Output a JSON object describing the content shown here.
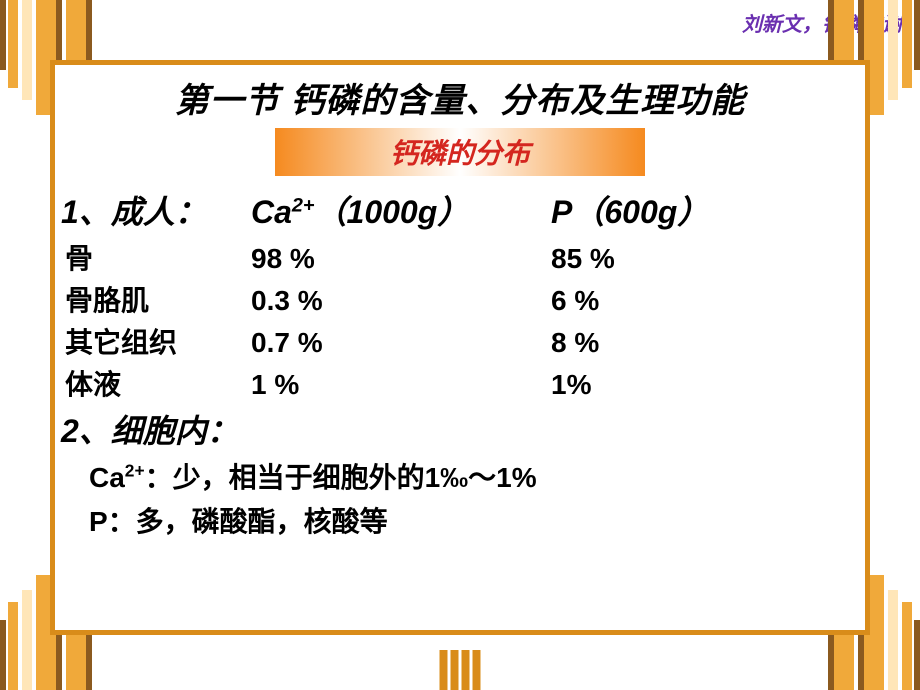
{
  "colors": {
    "header_text": "#6a2fb0",
    "frame_border": "#d98c1a",
    "subtitle_text": "#d4261f",
    "subtitle_bg_start": "#f58a1f",
    "subtitle_bg_mid": "#ffffff",
    "subtitle_bg_end": "#f58a1f",
    "stripe_gold": "#f0a93a",
    "stripe_brown": "#8b5a1f",
    "stripe_pale": "#ffe6b8",
    "body_text": "#000000",
    "tick_color": "#d98c1a"
  },
  "header": "刘新文，钙磷代谢",
  "title": "第一节  钙磷的含量、分布及生理功能",
  "subtitle": "钙磷的分布",
  "section1_label": "1、成人：",
  "col_ca_label_pre": "Ca",
  "col_ca_label_sup": "2+",
  "col_ca_label_post": "（1000g）",
  "col_p_label": "P（600g）",
  "rows": [
    {
      "label": " 骨",
      "ca": "98 %",
      "p": "85 %"
    },
    {
      "label": " 骨胳肌",
      "ca": "0.3 %",
      "p": " 6 %"
    },
    {
      "label": " 其它组织",
      "ca": "0.7 %",
      "p": " 8 %"
    },
    {
      "label": " 体液",
      "ca": "1 %",
      "p": " 1%"
    }
  ],
  "section2_label": "2、细胞内：",
  "line_ca_pre": "Ca",
  "line_ca_sup": "2+",
  "line_ca_post": "：少，相当于细胞外的1‰～1%",
  "line_p": " P：多，磷酸酯，核酸等"
}
